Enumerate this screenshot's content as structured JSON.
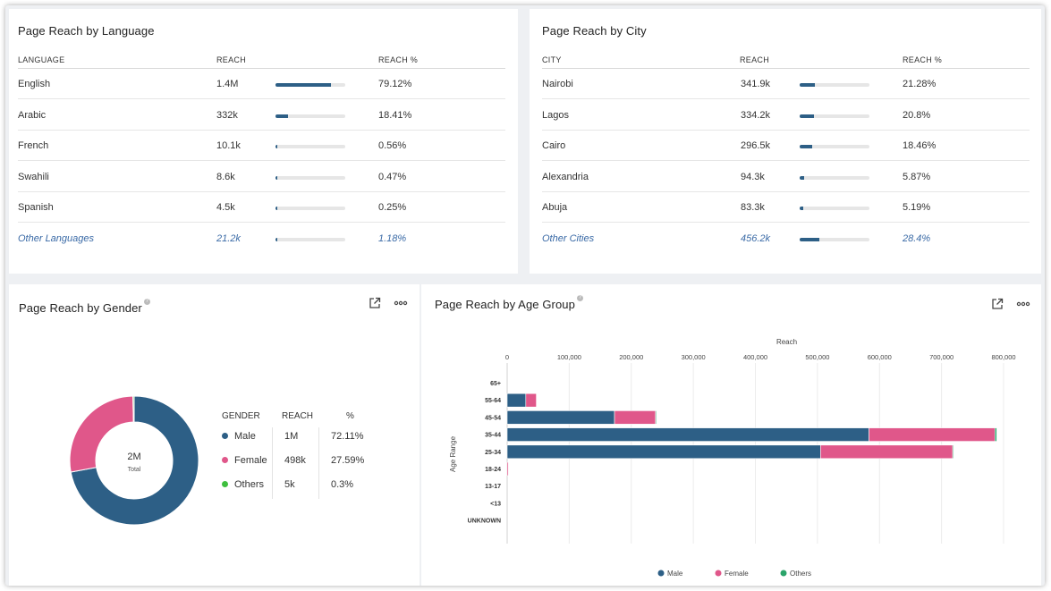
{
  "language_card": {
    "title": "Page Reach by Language",
    "headers": {
      "col1": "LANGUAGE",
      "col2": "REACH",
      "col3": "REACH %"
    },
    "rows": [
      {
        "label": "English",
        "reach": "1.4M",
        "pct": "79.12%",
        "fill": 0.7912
      },
      {
        "label": "Arabic",
        "reach": "332k",
        "pct": "18.41%",
        "fill": 0.1841
      },
      {
        "label": "French",
        "reach": "10.1k",
        "pct": "0.56%",
        "fill": 0.0056
      },
      {
        "label": "Swahili",
        "reach": "8.6k",
        "pct": "0.47%",
        "fill": 0.0047
      },
      {
        "label": "Spanish",
        "reach": "4.5k",
        "pct": "0.25%",
        "fill": 0.0025
      },
      {
        "label": "Other Languages",
        "reach": "21.2k",
        "pct": "1.18%",
        "fill": 0.0118
      }
    ]
  },
  "city_card": {
    "title": "Page Reach by City",
    "headers": {
      "col1": "CITY",
      "col2": "REACH",
      "col3": "REACH %"
    },
    "rows": [
      {
        "label": "Nairobi",
        "reach": "341.9k",
        "pct": "21.28%",
        "fill": 0.2128
      },
      {
        "label": "Lagos",
        "reach": "334.2k",
        "pct": "20.8%",
        "fill": 0.208
      },
      {
        "label": "Cairo",
        "reach": "296.5k",
        "pct": "18.46%",
        "fill": 0.1846
      },
      {
        "label": "Alexandria",
        "reach": "94.3k",
        "pct": "5.87%",
        "fill": 0.0587
      },
      {
        "label": "Abuja",
        "reach": "83.3k",
        "pct": "5.19%",
        "fill": 0.0519
      },
      {
        "label": "Other Cities",
        "reach": "456.2k",
        "pct": "28.4%",
        "fill": 0.284
      }
    ]
  },
  "gender_card": {
    "title": "Page Reach by Gender",
    "total_value": "2M",
    "total_label": "Total",
    "headers": {
      "col1": "GENDER",
      "col2": "REACH",
      "col3": "%"
    },
    "rows": [
      {
        "label": "Male",
        "reach": "1M",
        "pct": "72.11%",
        "color": "#2d5f86"
      },
      {
        "label": "Female",
        "reach": "498k",
        "pct": "27.59%",
        "color": "#e0578a"
      },
      {
        "label": "Others",
        "reach": "5k",
        "pct": "0.3%",
        "color": "#3fbf3f"
      }
    ]
  },
  "age_card": {
    "title": "Page Reach by Age Group"
  },
  "chart_data": [
    {
      "type": "pie",
      "categories": [
        "Male",
        "Female",
        "Others"
      ],
      "values": [
        72.11,
        27.59,
        0.3
      ],
      "colors": [
        "#2d5f86",
        "#e0578a",
        "#3fbf3f"
      ],
      "center_value": "2M",
      "center_label": "Total"
    },
    {
      "type": "bar",
      "orientation": "horizontal",
      "stacked": true,
      "xlabel": "Reach",
      "ylabel": "Age Range",
      "xlim": [
        0,
        800000
      ],
      "x_ticks": [
        "0",
        "100,000",
        "200,000",
        "300,000",
        "400,000",
        "500,000",
        "600,000",
        "700,000",
        "800,000"
      ],
      "categories": [
        "65+",
        "55-64",
        "45-54",
        "35-44",
        "25-34",
        "18-24",
        "13-17",
        "<13",
        "UNKNOWN"
      ],
      "series": [
        {
          "name": "Male",
          "color": "#2d5f86",
          "values": [
            0,
            30000,
            173000,
            583000,
            505000,
            0,
            0,
            0,
            0
          ]
        },
        {
          "name": "Female",
          "color": "#e0578a",
          "values": [
            0,
            17000,
            66000,
            203000,
            213000,
            2000,
            0,
            0,
            0
          ]
        },
        {
          "name": "Others",
          "color": "#2aa46a",
          "values": [
            0,
            0,
            1000,
            3000,
            1000,
            0,
            0,
            0,
            0
          ]
        }
      ],
      "legend": "bottom"
    }
  ]
}
